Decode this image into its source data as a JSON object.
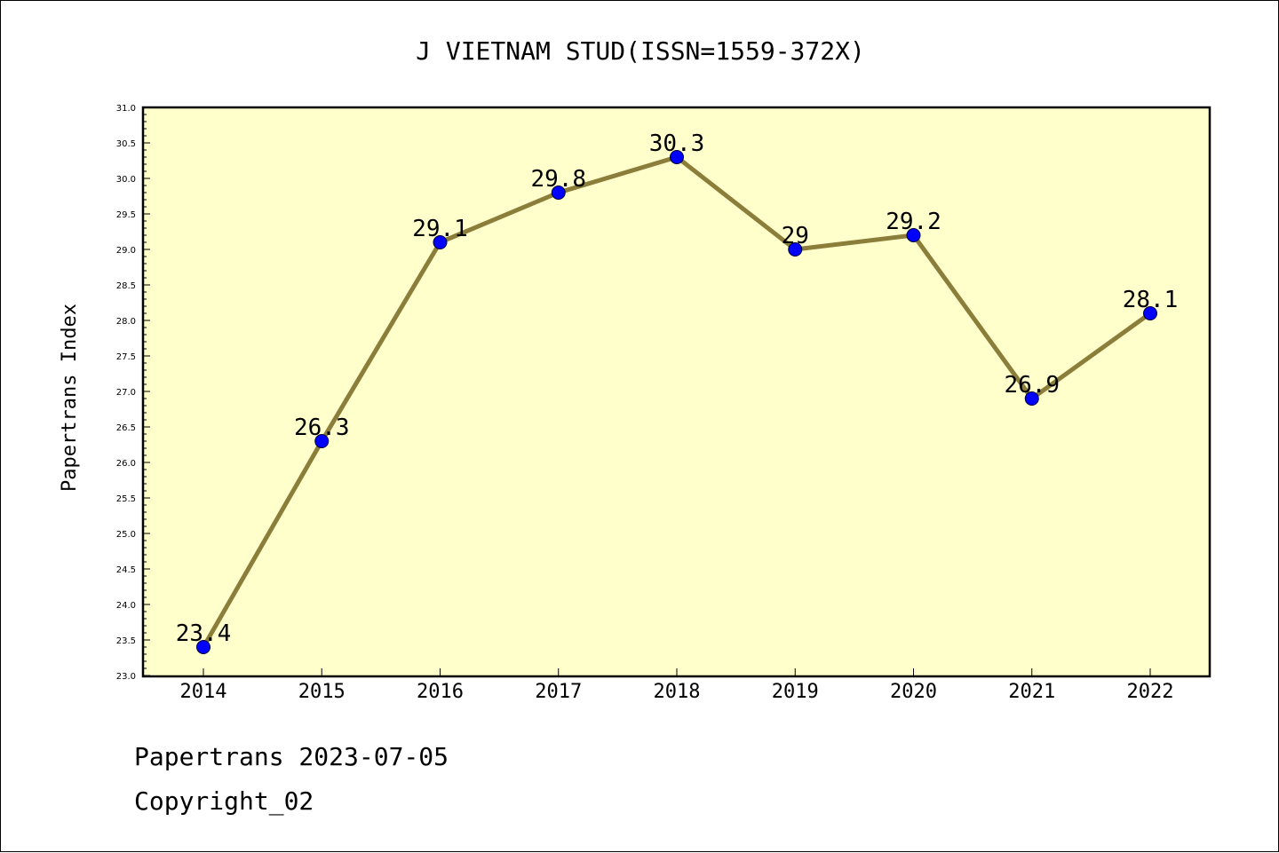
{
  "footer": {
    "line1": "Papertrans 2023-07-05",
    "line2": "Copyright_02"
  },
  "colors": {
    "plot_background": "#ffffcc",
    "line": "#8b7d3a",
    "marker": "#0000ff",
    "axis": "#000000"
  },
  "chart_data": {
    "type": "line",
    "title": "J VIETNAM STUD(ISSN=1559-372X)",
    "xlabel": "",
    "ylabel": "Papertrans Index",
    "categories": [
      "2014",
      "2015",
      "2016",
      "2017",
      "2018",
      "2019",
      "2020",
      "2021",
      "2022"
    ],
    "values": [
      23.4,
      26.3,
      29.1,
      29.8,
      30.3,
      29,
      29.2,
      26.9,
      28.1
    ],
    "data_labels": [
      "23.4",
      "26.3",
      "29.1",
      "29.8",
      "30.3",
      "29",
      "29.2",
      "26.9",
      "28.1"
    ],
    "ylim": [
      23.0,
      31.0
    ],
    "yticks": [
      "23.0",
      "23.5",
      "24.0",
      "24.5",
      "25.0",
      "25.5",
      "26.0",
      "26.5",
      "27.0",
      "27.5",
      "28.0",
      "28.5",
      "29.0",
      "29.5",
      "30.0",
      "30.5",
      "31.0"
    ],
    "grid": false,
    "legend": "none"
  }
}
